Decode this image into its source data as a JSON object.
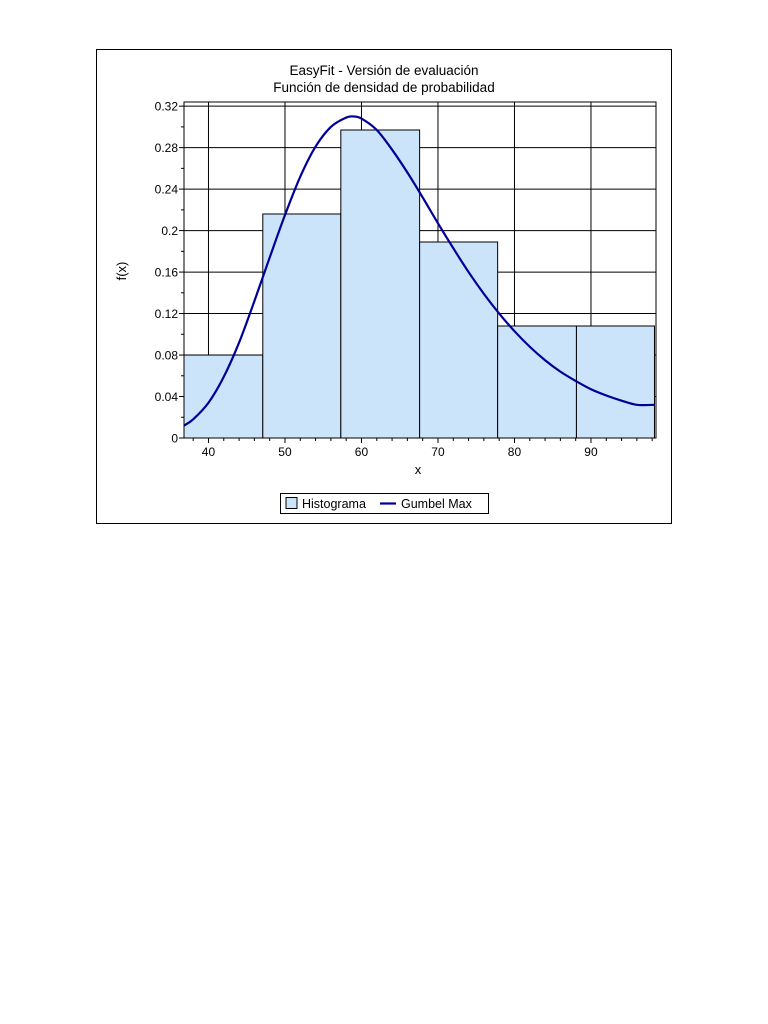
{
  "chart_data": {
    "type": "bar",
    "title": "EasyFit - Versión de evaluación",
    "subtitle": "Función de densidad de probabilidad",
    "xlabel": "x",
    "ylabel": "f(x)",
    "xlim": [
      36.8,
      98.5
    ],
    "ylim": [
      0,
      0.324
    ],
    "xticks": [
      40,
      50,
      60,
      70,
      80,
      90
    ],
    "xtick_labels": [
      "40",
      "50",
      "60",
      "70",
      "80",
      "90"
    ],
    "yticks": [
      0,
      0.04,
      0.08,
      0.12,
      0.16,
      0.2,
      0.24,
      0.28,
      0.32
    ],
    "ytick_labels": [
      "0",
      "0.04",
      "0.08",
      "0.12",
      "0.16",
      "0.2",
      "0.24",
      "0.28",
      "0.32"
    ],
    "grid": true,
    "legend_position": "bottom-center",
    "histogram": {
      "name": "Histograma",
      "color": "#cce4fa",
      "edge_color": "#000000",
      "bins": [
        {
          "x0": 36.8,
          "x1": 47.1,
          "value": 0.08
        },
        {
          "x0": 47.1,
          "x1": 57.3,
          "value": 0.216
        },
        {
          "x0": 57.3,
          "x1": 67.6,
          "value": 0.297
        },
        {
          "x0": 67.6,
          "x1": 77.8,
          "value": 0.189
        },
        {
          "x0": 77.8,
          "x1": 88.1,
          "value": 0.108
        },
        {
          "x0": 88.1,
          "x1": 98.3,
          "value": 0.108
        }
      ]
    },
    "curve": {
      "name": "Gumbel Max",
      "color": "#000099",
      "x": [
        36.8,
        38,
        40,
        42,
        44,
        46,
        48,
        50,
        52,
        54,
        56,
        58,
        59,
        60,
        62,
        64,
        66,
        68,
        70,
        72,
        74,
        76,
        78,
        80,
        82,
        84,
        86,
        88,
        90,
        92,
        94,
        96,
        98.3
      ],
      "y": [
        0.012,
        0.018,
        0.034,
        0.059,
        0.092,
        0.132,
        0.174,
        0.215,
        0.252,
        0.281,
        0.3,
        0.309,
        0.31,
        0.308,
        0.297,
        0.278,
        0.256,
        0.232,
        0.207,
        0.183,
        0.16,
        0.139,
        0.12,
        0.103,
        0.088,
        0.075,
        0.064,
        0.055,
        0.047,
        0.041,
        0.036,
        0.032,
        0.032
      ]
    }
  }
}
